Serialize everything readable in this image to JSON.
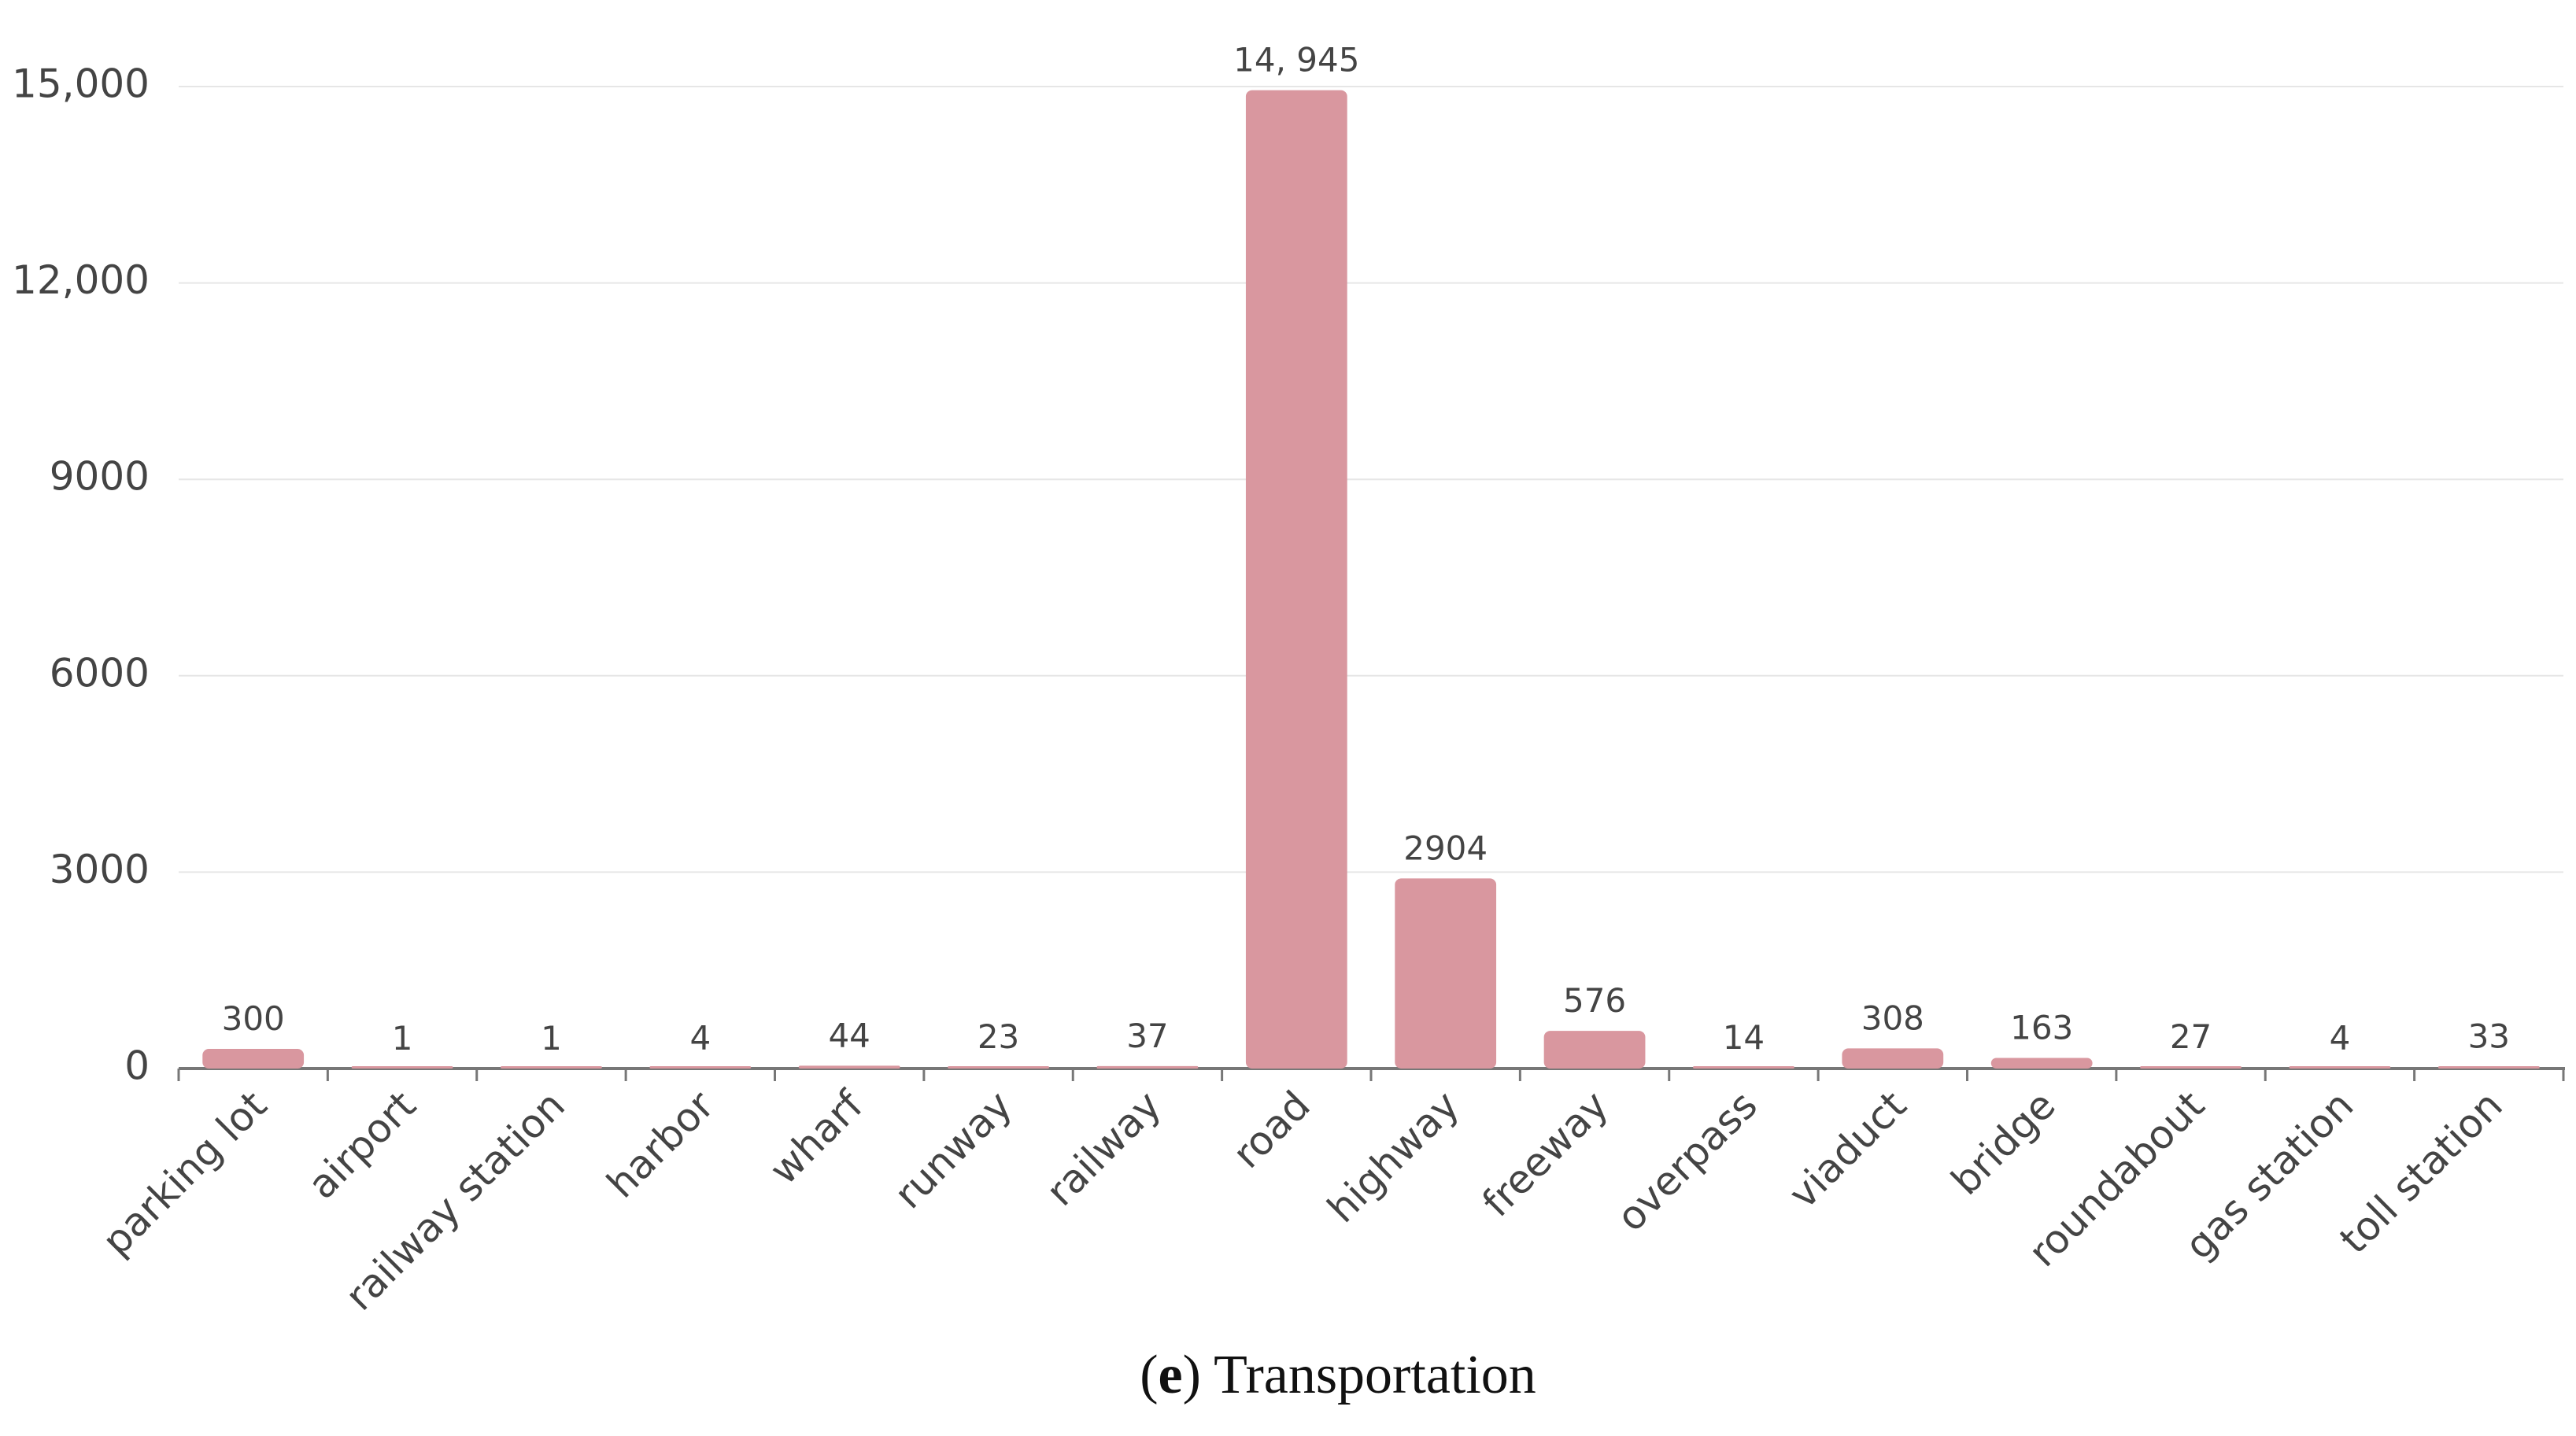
{
  "chart_data": {
    "type": "bar",
    "categories": [
      "parking lot",
      "airport",
      "railway station",
      "harbor",
      "wharf",
      "runway",
      "railway",
      "road",
      "highway",
      "freeway",
      "overpass",
      "viaduct",
      "bridge",
      "roundabout",
      "gas station",
      "toll station"
    ],
    "values": [
      300,
      1,
      1,
      4,
      44,
      23,
      37,
      14945,
      2904,
      576,
      14,
      308,
      163,
      27,
      4,
      33
    ],
    "value_labels": [
      "300",
      "1",
      "1",
      "4",
      "44",
      "23",
      "37",
      "14, 945",
      "2904",
      "576",
      "14",
      "308",
      "163",
      "27",
      "4",
      "33"
    ],
    "color": "#d9979f",
    "ylim": [
      0,
      15000
    ],
    "yticks": [
      0,
      3000,
      6000,
      9000,
      {
        "value": 12000,
        "label": "12,000"
      },
      {
        "value": 15000,
        "label": "15,000"
      }
    ],
    "grid": true,
    "caption_parts": [
      "(",
      "e",
      ") Transportation"
    ]
  }
}
